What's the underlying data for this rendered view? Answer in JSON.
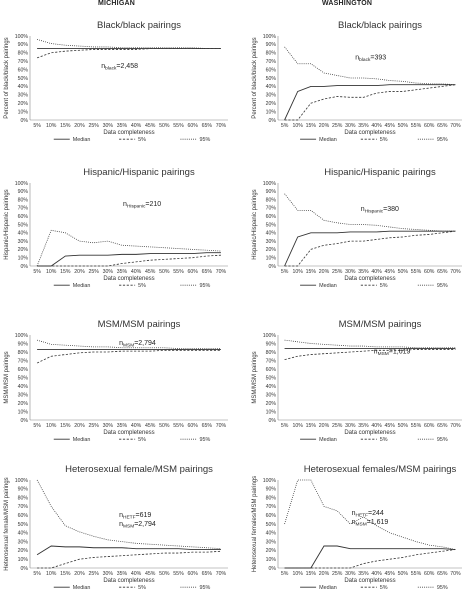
{
  "header": {
    "left_title": "MICHIGAN",
    "right_title": "WASHINGTON"
  },
  "chart_data": [
    {
      "type": "line",
      "state": "MICHIGAN",
      "title": "Black/black pairings",
      "xlabel": "Data completeness",
      "ylabel": "Percent of black/black pairings",
      "annotation": [
        {
          "prefix": "n",
          "sub": "black",
          "value": "=2,458"
        }
      ],
      "x": [
        "5%",
        "10%",
        "15%",
        "20%",
        "25%",
        "30%",
        "35%",
        "40%",
        "45%",
        "50%",
        "55%",
        "60%",
        "65%",
        "70%"
      ],
      "ylim": [
        0,
        100
      ],
      "yticks": [
        "0%",
        "10%",
        "20%",
        "30%",
        "40%",
        "50%",
        "60%",
        "70%",
        "80%",
        "90%",
        "100%"
      ],
      "series": [
        {
          "name": "Median",
          "style": "solid",
          "values": [
            85,
            85,
            85,
            85,
            85,
            85,
            85,
            85,
            85,
            85,
            85,
            85,
            85,
            85
          ]
        },
        {
          "name": "5%",
          "style": "dashed",
          "values": [
            74,
            80,
            82,
            83,
            84,
            84,
            84,
            84,
            85,
            85,
            85,
            85,
            85,
            85
          ]
        },
        {
          "name": "95%",
          "style": "dotted",
          "values": [
            96,
            91,
            89,
            88,
            87,
            87,
            86,
            86,
            86,
            86,
            86,
            86,
            85,
            85
          ]
        }
      ]
    },
    {
      "type": "line",
      "state": "WASHINGTON",
      "title": "Black/black pairings",
      "xlabel": "Data completeness",
      "ylabel": "Percent of black/black pairings",
      "annotation": [
        {
          "prefix": "n",
          "sub": "black",
          "value": "=393"
        }
      ],
      "x": [
        "5%",
        "10%",
        "15%",
        "20%",
        "25%",
        "30%",
        "35%",
        "40%",
        "45%",
        "50%",
        "55%",
        "60%",
        "65%",
        "70%"
      ],
      "ylim": [
        0,
        100
      ],
      "yticks": [
        "0%",
        "10%",
        "20%",
        "30%",
        "40%",
        "50%",
        "60%",
        "70%",
        "80%",
        "90%",
        "100%"
      ],
      "series": [
        {
          "name": "Median",
          "style": "solid",
          "values": [
            0,
            34,
            40,
            40,
            41,
            41,
            41,
            41,
            42,
            42,
            42,
            42,
            42,
            42
          ]
        },
        {
          "name": "5%",
          "style": "dashed",
          "values": [
            0,
            0,
            20,
            25,
            28,
            27,
            27,
            32,
            34,
            34,
            36,
            38,
            40,
            42
          ]
        },
        {
          "name": "95%",
          "style": "dotted",
          "values": [
            87,
            67,
            67,
            56,
            53,
            50,
            50,
            49,
            47,
            46,
            44,
            43,
            43,
            42
          ]
        }
      ]
    },
    {
      "type": "line",
      "state": "MICHIGAN",
      "title": "Hispanic/Hispanic pairings",
      "xlabel": "Data completeness",
      "ylabel": "Hispanic/Hispanic pairings",
      "annotation": [
        {
          "prefix": "n",
          "sub": "Hispanic",
          "value": "=210"
        }
      ],
      "x": [
        "5%",
        "10%",
        "15%",
        "20%",
        "25%",
        "30%",
        "35%",
        "40%",
        "45%",
        "50%",
        "55%",
        "60%",
        "65%",
        "70%"
      ],
      "ylim": [
        0,
        100
      ],
      "yticks": [
        "0%",
        "10%",
        "20%",
        "30%",
        "40%",
        "50%",
        "60%",
        "70%",
        "80%",
        "90%",
        "100%"
      ],
      "series": [
        {
          "name": "Median",
          "style": "solid",
          "values": [
            0,
            0,
            12,
            13,
            13,
            13,
            14,
            14,
            15,
            15,
            15,
            15,
            16,
            16
          ]
        },
        {
          "name": "5%",
          "style": "dashed",
          "values": [
            0,
            0,
            0,
            0,
            0,
            0,
            3,
            5,
            7,
            8,
            9,
            10,
            12,
            13
          ]
        },
        {
          "name": "95%",
          "style": "dotted",
          "values": [
            0,
            43,
            40,
            30,
            28,
            30,
            25,
            24,
            23,
            22,
            21,
            20,
            19,
            18
          ]
        }
      ]
    },
    {
      "type": "line",
      "state": "WASHINGTON",
      "title": "Hispanic/Hispanic pairings",
      "xlabel": "Data completeness",
      "ylabel": "Hispanic/Hispanic pairings",
      "annotation": [
        {
          "prefix": "n",
          "sub": "Hispanic",
          "value": "=380"
        }
      ],
      "x": [
        "5%",
        "10%",
        "15%",
        "20%",
        "25%",
        "30%",
        "35%",
        "40%",
        "45%",
        "50%",
        "55%",
        "60%",
        "65%",
        "70%"
      ],
      "ylim": [
        0,
        100
      ],
      "yticks": [
        "0%",
        "10%",
        "20%",
        "30%",
        "40%",
        "50%",
        "60%",
        "70%",
        "80%",
        "90%",
        "100%"
      ],
      "series": [
        {
          "name": "Median",
          "style": "solid",
          "values": [
            0,
            35,
            40,
            40,
            40,
            41,
            41,
            41,
            42,
            42,
            42,
            42,
            42,
            42
          ]
        },
        {
          "name": "5%",
          "style": "dashed",
          "values": [
            0,
            0,
            20,
            25,
            27,
            30,
            30,
            32,
            34,
            35,
            37,
            38,
            40,
            42
          ]
        },
        {
          "name": "95%",
          "style": "dotted",
          "values": [
            87,
            67,
            67,
            55,
            52,
            50,
            50,
            49,
            47,
            45,
            44,
            43,
            42,
            42
          ]
        }
      ]
    },
    {
      "type": "line",
      "state": "MICHIGAN",
      "title": "MSM/MSM pairings",
      "xlabel": "Data completeness",
      "ylabel": "MSM/MSM pairings",
      "annotation": [
        {
          "prefix": "n",
          "sub": "MSM",
          "value": "=2,794"
        }
      ],
      "x": [
        "5%",
        "10%",
        "15%",
        "20%",
        "25%",
        "30%",
        "35%",
        "40%",
        "45%",
        "50%",
        "55%",
        "60%",
        "65%",
        "70%"
      ],
      "ylim": [
        0,
        100
      ],
      "yticks": [
        "0%",
        "10%",
        "20%",
        "30%",
        "40%",
        "50%",
        "60%",
        "70%",
        "80%",
        "90%",
        "100%"
      ],
      "series": [
        {
          "name": "Median",
          "style": "solid",
          "values": [
            83,
            83,
            83,
            83,
            83,
            83,
            83,
            83,
            83,
            83,
            83,
            83,
            83,
            83
          ]
        },
        {
          "name": "5%",
          "style": "dashed",
          "values": [
            67,
            75,
            77,
            79,
            80,
            80,
            81,
            81,
            81,
            82,
            82,
            82,
            82,
            82
          ]
        },
        {
          "name": "95%",
          "style": "dotted",
          "values": [
            94,
            89,
            88,
            87,
            86,
            86,
            85,
            85,
            85,
            85,
            84,
            84,
            84,
            84
          ]
        }
      ]
    },
    {
      "type": "line",
      "state": "WASHINGTON",
      "title": "MSM/MSM pairings",
      "xlabel": "Data completeness",
      "ylabel": "MSM/MSM pairings",
      "annotation": [
        {
          "prefix": "n",
          "sub": "MSM",
          "value": "=1,619"
        }
      ],
      "x": [
        "5%",
        "10%",
        "15%",
        "20%",
        "25%",
        "30%",
        "35%",
        "40%",
        "45%",
        "50%",
        "55%",
        "60%",
        "65%",
        "70%"
      ],
      "ylim": [
        0,
        100
      ],
      "yticks": [
        "0%",
        "10%",
        "20%",
        "30%",
        "40%",
        "50%",
        "60%",
        "70%",
        "80%",
        "90%",
        "100%"
      ],
      "series": [
        {
          "name": "Median",
          "style": "solid",
          "values": [
            84,
            84,
            84,
            84,
            84,
            84,
            84,
            84,
            84,
            84,
            84,
            84,
            84,
            84
          ]
        },
        {
          "name": "5%",
          "style": "dashed",
          "values": [
            71,
            75,
            77,
            78,
            79,
            80,
            81,
            82,
            82,
            82,
            83,
            83,
            83,
            83
          ]
        },
        {
          "name": "95%",
          "style": "dotted",
          "values": [
            94,
            92,
            90,
            89,
            88,
            87,
            87,
            86,
            86,
            86,
            85,
            85,
            85,
            85
          ]
        }
      ]
    },
    {
      "type": "line",
      "state": "MICHIGAN",
      "title": "Heterosexual female/MSM pairings",
      "xlabel": "Data completeness",
      "ylabel": "Heterosexual female/MSM pairings",
      "annotation": [
        {
          "prefix": "n",
          "sub": "HETF",
          "value": "=619"
        },
        {
          "prefix": "n",
          "sub": "MSM",
          "value": "=2,794"
        }
      ],
      "x": [
        "5%",
        "10%",
        "15%",
        "20%",
        "25%",
        "30%",
        "35%",
        "40%",
        "45%",
        "50%",
        "55%",
        "60%",
        "65%",
        "70%"
      ],
      "ylim": [
        0,
        100
      ],
      "yticks": [
        "0%",
        "10%",
        "20%",
        "30%",
        "40%",
        "50%",
        "60%",
        "70%",
        "80%",
        "90%",
        "100%"
      ],
      "series": [
        {
          "name": "Median",
          "style": "solid",
          "values": [
            15,
            25,
            24,
            24,
            23,
            23,
            23,
            22,
            22,
            22,
            22,
            21,
            21,
            21
          ]
        },
        {
          "name": "5%",
          "style": "dashed",
          "values": [
            0,
            0,
            5,
            10,
            12,
            13,
            14,
            15,
            16,
            17,
            17,
            18,
            18,
            19
          ]
        },
        {
          "name": "95%",
          "style": "dotted",
          "values": [
            100,
            70,
            48,
            41,
            36,
            32,
            30,
            28,
            27,
            26,
            25,
            24,
            23,
            22
          ]
        }
      ]
    },
    {
      "type": "line",
      "state": "WASHINGTON",
      "title": "Heterosexual females/MSM pairings",
      "xlabel": "Data completeness",
      "ylabel": "Heterosexual females/MSM pairings",
      "annotation": [
        {
          "prefix": "n",
          "sub": "HETF",
          "value": "=244"
        },
        {
          "prefix": "n",
          "sub": "MSM",
          "value": "=1,619"
        }
      ],
      "x": [
        "5%",
        "10%",
        "15%",
        "20%",
        "25%",
        "30%",
        "35%",
        "40%",
        "45%",
        "50%",
        "55%",
        "60%",
        "65%",
        "70%"
      ],
      "ylim": [
        0,
        100
      ],
      "yticks": [
        "0%",
        "10%",
        "20%",
        "30%",
        "40%",
        "50%",
        "60%",
        "70%",
        "80%",
        "90%",
        "100%"
      ],
      "series": [
        {
          "name": "Median",
          "style": "solid",
          "values": [
            0,
            0,
            0,
            25,
            25,
            22,
            22,
            22,
            22,
            22,
            22,
            22,
            22,
            21
          ]
        },
        {
          "name": "5%",
          "style": "dashed",
          "values": [
            0,
            0,
            0,
            0,
            0,
            0,
            5,
            8,
            10,
            12,
            15,
            17,
            19,
            21
          ]
        },
        {
          "name": "95%",
          "style": "dotted",
          "values": [
            50,
            100,
            100,
            70,
            65,
            50,
            58,
            48,
            40,
            35,
            30,
            26,
            24,
            21
          ]
        }
      ]
    }
  ]
}
